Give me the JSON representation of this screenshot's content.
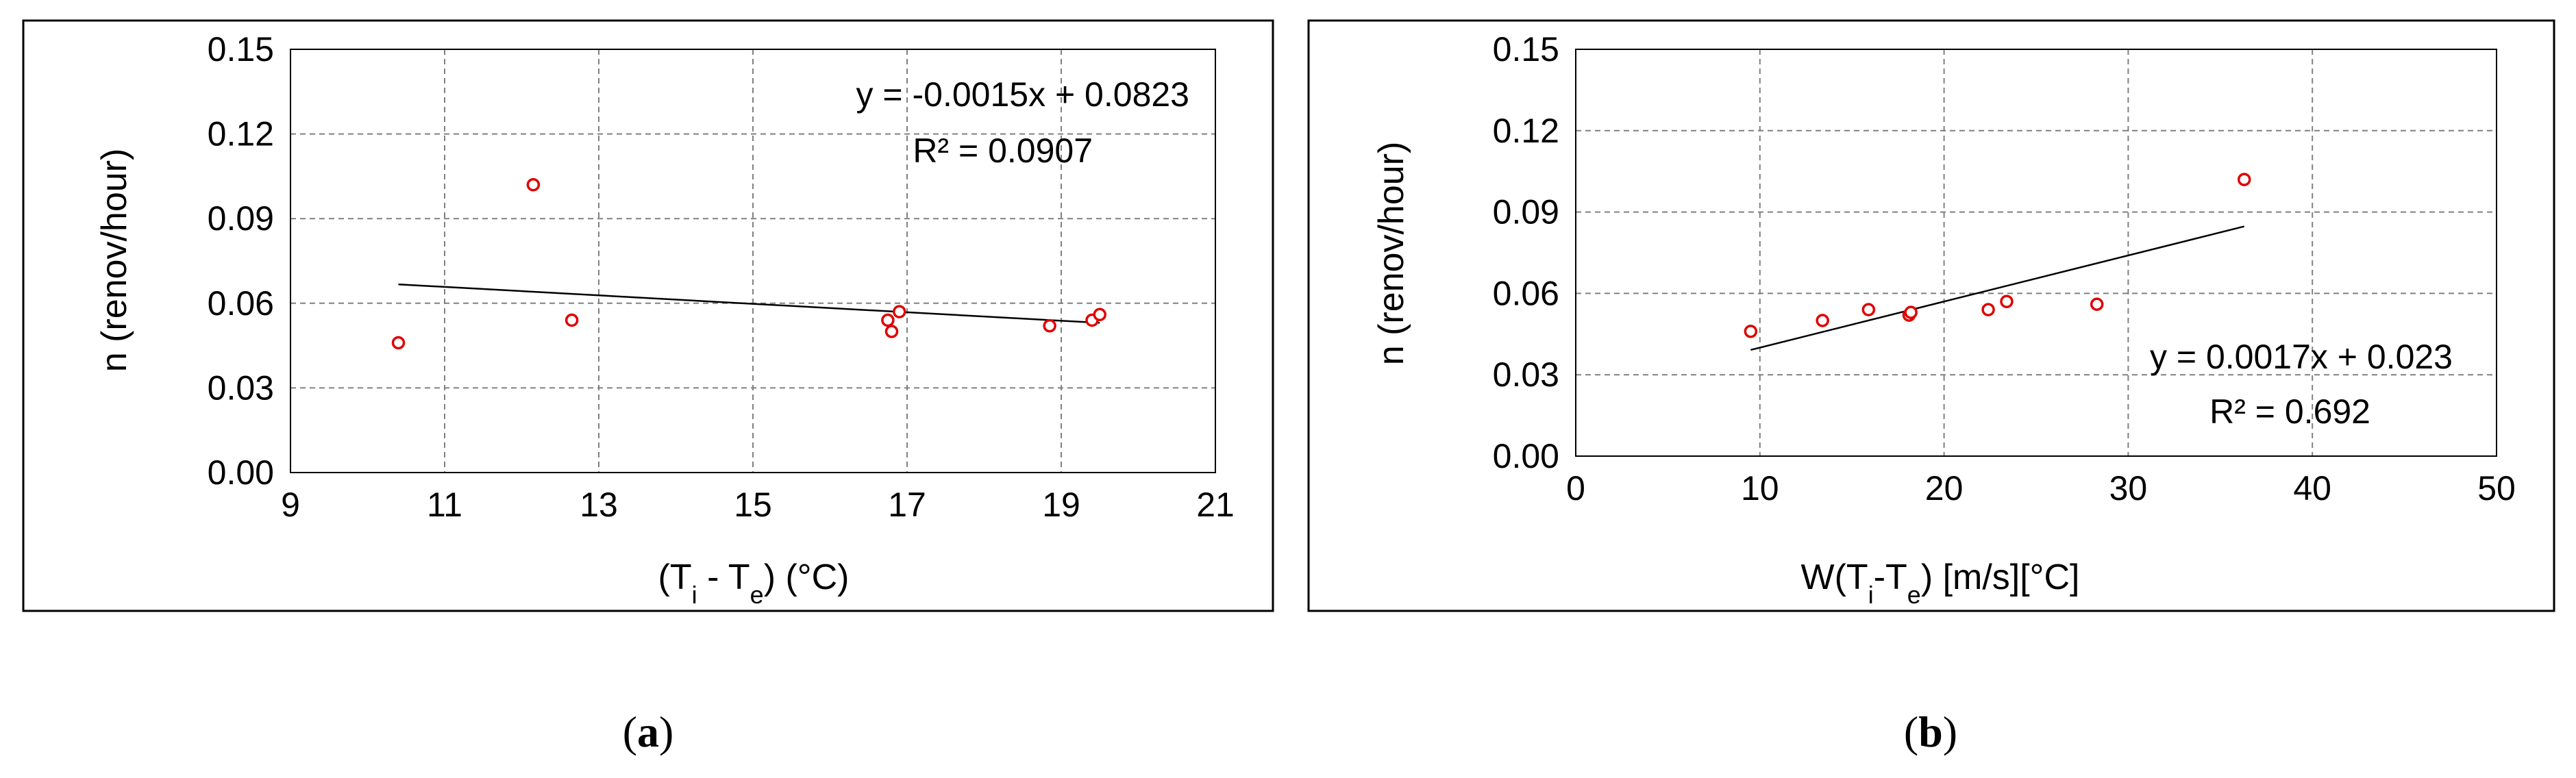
{
  "colors": {
    "marker": "#e00000",
    "trendline": "#000000",
    "grid": "#808080",
    "frame": "#000000"
  },
  "chart_data": [
    {
      "type": "scatter",
      "panel": "a",
      "caption_letter": "a",
      "ylabel": "n (renov/hour)",
      "xlabel": {
        "prefix": "(T",
        "sub1": "i",
        "mid": " - T",
        "sub2": "e",
        "suffix": ") (°C)"
      },
      "xlim": [
        9,
        21
      ],
      "ylim": [
        0,
        0.15
      ],
      "x_ticks": [
        9,
        11,
        13,
        15,
        17,
        19,
        21
      ],
      "y_ticks": [
        0,
        0.03,
        0.06,
        0.09,
        0.12,
        0.15
      ],
      "x_tick_labels": [
        "9",
        "11",
        "13",
        "15",
        "17",
        "19",
        "21"
      ],
      "y_tick_labels": [
        "0.00",
        "0.03",
        "0.06",
        "0.09",
        "0.12",
        "0.15"
      ],
      "grid": true,
      "points": [
        {
          "x": 10.4,
          "y": 0.046
        },
        {
          "x": 12.15,
          "y": 0.102
        },
        {
          "x": 12.65,
          "y": 0.054
        },
        {
          "x": 16.75,
          "y": 0.054
        },
        {
          "x": 16.8,
          "y": 0.05
        },
        {
          "x": 16.9,
          "y": 0.057
        },
        {
          "x": 18.85,
          "y": 0.052
        },
        {
          "x": 19.4,
          "y": 0.054
        },
        {
          "x": 19.5,
          "y": 0.056
        }
      ],
      "trendline": {
        "slope": -0.0015,
        "intercept": 0.0823,
        "x_range": [
          10.4,
          19.5
        ]
      },
      "equation": "y = -0.0015x + 0.0823",
      "r_squared": "R² = 0.0907",
      "annotation_position": "top-right"
    },
    {
      "type": "scatter",
      "panel": "b",
      "caption_letter": "b",
      "ylabel": "n (renov/hour)",
      "xlabel": {
        "prefix": "W(T",
        "sub1": "i",
        "mid": "-T",
        "sub2": "e",
        "suffix": ") [m/s][°C]"
      },
      "xlim": [
        0,
        50
      ],
      "ylim": [
        0,
        0.15
      ],
      "x_ticks": [
        0,
        10,
        20,
        30,
        40,
        50
      ],
      "y_ticks": [
        0,
        0.03,
        0.06,
        0.09,
        0.12,
        0.15
      ],
      "x_tick_labels": [
        "0",
        "10",
        "20",
        "30",
        "40",
        "50"
      ],
      "y_tick_labels": [
        "0.00",
        "0.03",
        "0.06",
        "0.09",
        "0.12",
        "0.15"
      ],
      "grid": true,
      "points": [
        {
          "x": 9.5,
          "y": 0.046
        },
        {
          "x": 13.4,
          "y": 0.05
        },
        {
          "x": 15.9,
          "y": 0.054
        },
        {
          "x": 18.1,
          "y": 0.052
        },
        {
          "x": 18.2,
          "y": 0.053
        },
        {
          "x": 22.4,
          "y": 0.054
        },
        {
          "x": 23.4,
          "y": 0.057
        },
        {
          "x": 28.3,
          "y": 0.056
        },
        {
          "x": 36.3,
          "y": 0.102
        }
      ],
      "trendline": {
        "slope": 0.0017,
        "intercept": 0.023,
        "x_range": [
          9.5,
          36.3
        ]
      },
      "equation": "y = 0.0017x + 0.023",
      "r_squared": "R² = 0.692",
      "annotation_position": "bottom-right"
    }
  ]
}
